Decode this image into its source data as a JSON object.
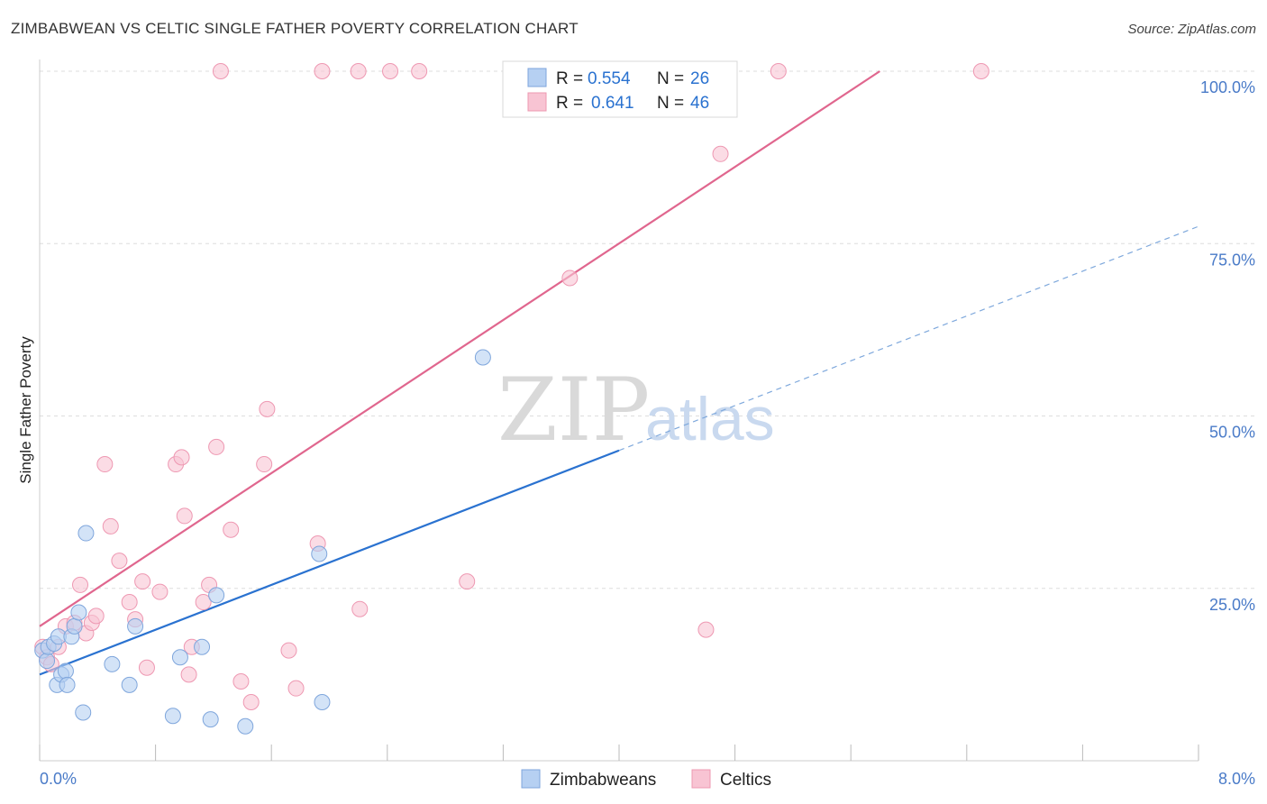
{
  "title": "ZIMBABWEAN VS CELTIC SINGLE FATHER POVERTY CORRELATION CHART",
  "source": "Source: ZipAtlas.com",
  "watermark": {
    "part1": "ZIP",
    "part2": "atlas"
  },
  "chart_data": {
    "type": "scatter",
    "title": "ZIMBABWEAN VS CELTIC SINGLE FATHER POVERTY CORRELATION CHART",
    "xlabel": "",
    "ylabel": "Single Father Poverty",
    "xlim": [
      0,
      8
    ],
    "ylim": [
      0,
      100
    ],
    "x_tick_labels": {
      "min": "0.0%",
      "max": "8.0%"
    },
    "y_ticks": [
      {
        "value": 25,
        "label": "25.0%"
      },
      {
        "value": 50,
        "label": "50.0%"
      },
      {
        "value": 75,
        "label": "75.0%"
      },
      {
        "value": 100,
        "label": "100.0%"
      }
    ],
    "grid": true,
    "legend_position": "top-center",
    "colors": {
      "zimbabweans_fill": "#b6d0f2",
      "zimbabweans_stroke": "#7fa6dc",
      "zimbabweans_line": "#2a72d0",
      "celtics_fill": "#f8c4d3",
      "celtics_stroke": "#ee98b2",
      "celtics_line": "#e0668e",
      "text_blue": "#2a72d0"
    },
    "stats": [
      {
        "r_label": "R =",
        "r_value": "0.554",
        "n_label": "N =",
        "n_value": "26"
      },
      {
        "r_label": "R =",
        "r_value": "0.641",
        "n_label": "N =",
        "n_value": "46"
      }
    ],
    "series": [
      {
        "name": "Zimbabweans",
        "points": [
          [
            0.02,
            16
          ],
          [
            0.05,
            14.5
          ],
          [
            0.06,
            16.5
          ],
          [
            0.1,
            17
          ],
          [
            0.12,
            11
          ],
          [
            0.13,
            18
          ],
          [
            0.15,
            12.5
          ],
          [
            0.18,
            13
          ],
          [
            0.19,
            11
          ],
          [
            0.22,
            18
          ],
          [
            0.24,
            19.5
          ],
          [
            0.27,
            21.5
          ],
          [
            0.3,
            7
          ],
          [
            0.32,
            33
          ],
          [
            0.5,
            14
          ],
          [
            0.62,
            11
          ],
          [
            0.66,
            19.5
          ],
          [
            0.92,
            6.5
          ],
          [
            0.97,
            15
          ],
          [
            1.12,
            16.5
          ],
          [
            1.18,
            6
          ],
          [
            1.22,
            24
          ],
          [
            1.42,
            5
          ],
          [
            1.93,
            30
          ],
          [
            1.95,
            8.5
          ],
          [
            3.06,
            58.5
          ]
        ],
        "trend": {
          "x0": 0,
          "y0": 12.5,
          "x1": 4,
          "y1": 45
        },
        "trend_extension": {
          "x0": 4,
          "y0": 45,
          "x1": 8,
          "y1": 77.5
        }
      },
      {
        "name": "Celtics",
        "points": [
          [
            0.02,
            16.5
          ],
          [
            0.05,
            15
          ],
          [
            0.08,
            14
          ],
          [
            0.13,
            16.5
          ],
          [
            0.18,
            19.5
          ],
          [
            0.24,
            20
          ],
          [
            0.28,
            25.5
          ],
          [
            0.32,
            18.5
          ],
          [
            0.36,
            20
          ],
          [
            0.39,
            21
          ],
          [
            0.45,
            43
          ],
          [
            0.49,
            34
          ],
          [
            0.55,
            29
          ],
          [
            0.62,
            23
          ],
          [
            0.66,
            20.5
          ],
          [
            0.71,
            26
          ],
          [
            0.74,
            13.5
          ],
          [
            0.83,
            24.5
          ],
          [
            0.94,
            43
          ],
          [
            0.98,
            44
          ],
          [
            1.0,
            35.5
          ],
          [
            1.03,
            12.5
          ],
          [
            1.05,
            16.5
          ],
          [
            1.13,
            23
          ],
          [
            1.17,
            25.5
          ],
          [
            1.22,
            45.5
          ],
          [
            1.32,
            33.5
          ],
          [
            1.39,
            11.5
          ],
          [
            1.46,
            8.5
          ],
          [
            1.55,
            43
          ],
          [
            1.57,
            51
          ],
          [
            1.72,
            16
          ],
          [
            1.77,
            10.5
          ],
          [
            1.92,
            31.5
          ],
          [
            2.21,
            22
          ],
          [
            2.95,
            26
          ],
          [
            3.66,
            70
          ],
          [
            4.6,
            19
          ],
          [
            4.7,
            88
          ],
          [
            1.25,
            100
          ],
          [
            1.95,
            100
          ],
          [
            2.2,
            100
          ],
          [
            2.42,
            100
          ],
          [
            2.62,
            100
          ],
          [
            5.1,
            100
          ],
          [
            6.5,
            100
          ]
        ],
        "trend": {
          "x0": 0,
          "y0": 19.5,
          "x1": 5.8,
          "y1": 100
        }
      }
    ]
  }
}
